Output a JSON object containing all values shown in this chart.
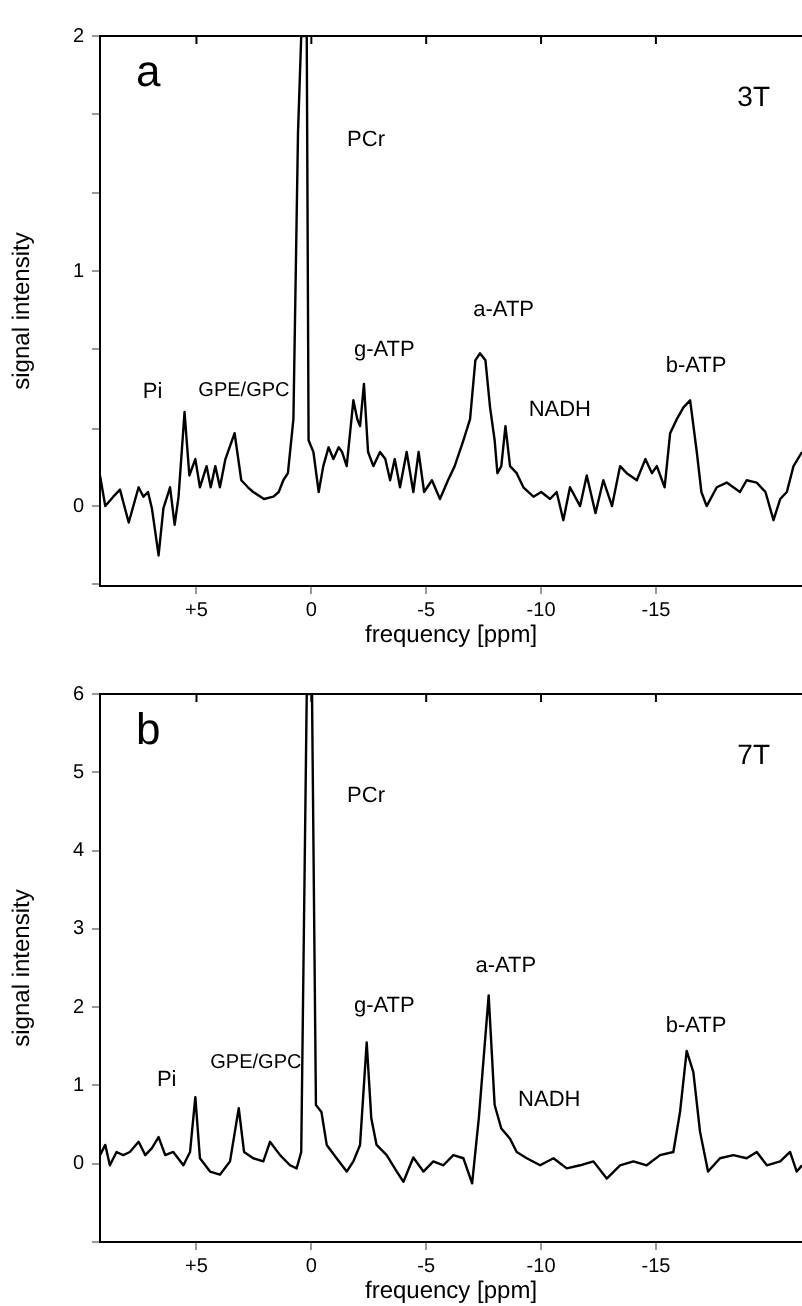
{
  "chart_data": [
    {
      "type": "line",
      "title": "a",
      "xlabel": "frequency [ppm]",
      "ylabel": "signal intensity",
      "annotations": [
        "3T",
        "PCr",
        "Pi",
        "GPE/GPC",
        "g-ATP",
        "a-ATP",
        "NADH",
        "b-ATP"
      ],
      "xlim": [
        9.2,
        -21.36
      ],
      "xticks": [
        {
          "value": 5,
          "label": "+5"
        },
        0,
        -5,
        -10,
        -15
      ],
      "ylim": [
        -0.34,
        2
      ],
      "yticks": [
        {
          "value": -0.33,
          "label": null
        },
        0,
        {
          "value": 0.33,
          "label": null
        },
        {
          "value": 0.67,
          "label": null
        },
        1,
        {
          "value": 1.33,
          "label": null
        },
        {
          "value": 1.67,
          "label": null
        },
        2
      ],
      "grid": false,
      "legend": false,
      "marker": "none",
      "line_style": "solid",
      "series": [
        {
          "color": "#000000",
          "x": [
            9.2,
            8.97,
            8.62,
            8.33,
            7.95,
            7.52,
            7.31,
            7.11,
            6.94,
            6.65,
            6.44,
            6.15,
            5.95,
            5.78,
            5.52,
            5.31,
            5.05,
            4.85,
            4.56,
            4.38,
            4.18,
            3.98,
            3.74,
            3.34,
            3.05,
            2.76,
            2.53,
            2.06,
            1.65,
            1.42,
            1.22,
            1.02,
            0.78,
            0.58,
            0.44,
            0.2,
            0.12,
            -0.09,
            -0.32,
            -0.52,
            -0.75,
            -0.96,
            -1.19,
            -1.34,
            -1.54,
            -1.83,
            -2.0,
            -2.12,
            -2.29,
            -2.47,
            -2.7,
            -2.99,
            -3.22,
            -3.43,
            -3.63,
            -3.86,
            -4.15,
            -4.44,
            -4.67,
            -4.91,
            -5.25,
            -5.6,
            -5.95,
            -6.24,
            -6.62,
            -6.91,
            -7.14,
            -7.34,
            -7.58,
            -7.78,
            -7.98,
            -8.1,
            -8.27,
            -8.45,
            -8.65,
            -8.94,
            -9.23,
            -9.67,
            -10.01,
            -10.39,
            -10.68,
            -10.97,
            -11.26,
            -11.7,
            -11.99,
            -12.37,
            -12.71,
            -13.09,
            -13.44,
            -13.73,
            -14.17,
            -14.54,
            -14.83,
            -15.04,
            -15.38,
            -15.62,
            -15.91,
            -16.2,
            -16.49,
            -16.78,
            -16.98,
            -17.21,
            -17.65,
            -18.08,
            -18.66,
            -18.95,
            -19.39,
            -19.77,
            -20.12,
            -20.41,
            -20.7,
            -20.99,
            -21.36
          ],
          "values": [
            0.13,
            0,
            0.04,
            0.07,
            -0.07,
            0.08,
            0.04,
            0.06,
            -0.01,
            -0.21,
            -0.01,
            0.08,
            -0.08,
            0.04,
            0.4,
            0.13,
            0.2,
            0.08,
            0.17,
            0.08,
            0.17,
            0.08,
            0.2,
            0.31,
            0.11,
            0.08,
            0.06,
            0.03,
            0.04,
            0.06,
            0.11,
            0.14,
            0.37,
            1.59,
            2,
            2,
            0.28,
            0.23,
            0.06,
            0.17,
            0.25,
            0.2,
            0.25,
            0.23,
            0.17,
            0.45,
            0.37,
            0.34,
            0.52,
            0.23,
            0.17,
            0.23,
            0.2,
            0.11,
            0.2,
            0.08,
            0.23,
            0.06,
            0.23,
            0.06,
            0.11,
            0.03,
            0.11,
            0.17,
            0.28,
            0.37,
            0.62,
            0.65,
            0.62,
            0.42,
            0.28,
            0.14,
            0.17,
            0.34,
            0.17,
            0.14,
            0.08,
            0.04,
            0.06,
            0.03,
            0.06,
            -0.06,
            0.08,
            0,
            0.13,
            -0.03,
            0.11,
            0,
            0.17,
            0.14,
            0.11,
            0.2,
            0.14,
            0.17,
            0.08,
            0.31,
            0.37,
            0.42,
            0.45,
            0.23,
            0.06,
            0,
            0.08,
            0.1,
            0.06,
            0.11,
            0.1,
            0.06,
            -0.06,
            0.03,
            0.06,
            0.17,
            0.23
          ]
        }
      ]
    },
    {
      "type": "line",
      "title": "b",
      "xlabel": "frequency [ppm]",
      "ylabel": "signal intensity",
      "annotations": [
        "7T",
        "PCr",
        "Pi",
        "GPE/GPC",
        "g-ATP",
        "a-ATP",
        "NADH",
        "b-ATP"
      ],
      "xlim": [
        9.2,
        -21.36
      ],
      "xticks": [
        {
          "value": 5,
          "label": "+5"
        },
        0,
        -5,
        -10,
        -15
      ],
      "ylim": [
        -1,
        6
      ],
      "yticks": [
        {
          "value": -1,
          "label": null
        },
        0,
        1,
        2,
        3,
        4,
        5,
        6
      ],
      "grid": false,
      "legend": false,
      "marker": "none",
      "line_style": "solid",
      "series": [
        {
          "color": "#000000",
          "x": [
            9.2,
            8.97,
            8.77,
            8.48,
            8.19,
            7.9,
            7.52,
            7.23,
            6.94,
            6.65,
            6.36,
            6.01,
            5.57,
            5.28,
            5.05,
            4.85,
            4.41,
            3.98,
            3.54,
            3.16,
            2.93,
            2.53,
            2.09,
            1.8,
            1.36,
            0.93,
            0.64,
            0.44,
            0.2,
            -0.03,
            -0.2,
            -0.44,
            -0.67,
            -1.1,
            -1.54,
            -1.83,
            -2.12,
            -2.41,
            -2.61,
            -2.84,
            -3.28,
            -3.72,
            -4.01,
            -4.44,
            -4.88,
            -5.31,
            -5.75,
            -6.18,
            -6.62,
            -7.0,
            -7.29,
            -7.72,
            -7.98,
            -8.27,
            -8.65,
            -8.94,
            -9.38,
            -9.96,
            -10.54,
            -11.12,
            -11.7,
            -12.28,
            -12.86,
            -13.44,
            -14.02,
            -14.6,
            -15.18,
            -15.76,
            -16.05,
            -16.34,
            -16.63,
            -16.92,
            -17.27,
            -17.79,
            -18.37,
            -18.95,
            -19.39,
            -19.83,
            -20.41,
            -20.84,
            -21.13,
            -21.36
          ],
          "values": [
            0.11,
            0.24,
            -0.02,
            0.15,
            0.11,
            0.15,
            0.28,
            0.11,
            0.2,
            0.34,
            0.11,
            0.15,
            -0.02,
            0.15,
            0.85,
            0.07,
            -0.1,
            -0.14,
            0.03,
            0.71,
            0.15,
            0.07,
            0.03,
            0.28,
            0.11,
            -0.02,
            -0.06,
            0.15,
            6,
            6,
            0.75,
            0.66,
            0.24,
            0.07,
            -0.1,
            0.03,
            0.24,
            1.55,
            0.58,
            0.24,
            0.11,
            -0.1,
            -0.23,
            0.08,
            -0.1,
            0.03,
            -0.02,
            0.11,
            0.07,
            -0.25,
            0.58,
            2.15,
            0.75,
            0.45,
            0.32,
            0.15,
            0.07,
            -0.02,
            0.07,
            -0.06,
            -0.02,
            0.03,
            -0.19,
            -0.02,
            0.03,
            -0.02,
            0.11,
            0.15,
            0.66,
            1.44,
            1.17,
            0.41,
            -0.1,
            0.07,
            0.11,
            0.07,
            0.15,
            -0.02,
            0.03,
            0.15,
            -0.1,
            -0.02
          ]
        }
      ]
    }
  ]
}
